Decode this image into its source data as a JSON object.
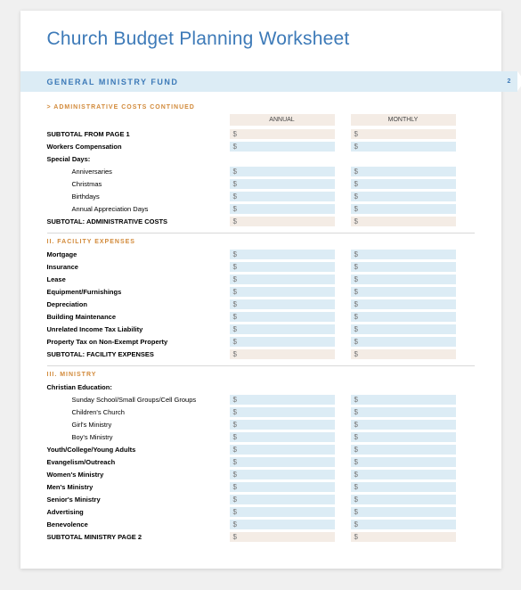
{
  "colors": {
    "title": "#3d7ab8",
    "band_bg": "#dcecf5",
    "band_text": "#3d7ab8",
    "orange": "#d28a3a",
    "fill_blue": "#dcecf5",
    "fill_tan": "#f4ece5",
    "page_bg": "#ffffff",
    "body_bg": "#f0f0f0"
  },
  "doc": {
    "title": "Church Budget Planning Worksheet",
    "fund_title": "GENERAL MINISTRY FUND",
    "page_number": "2",
    "col_annual": "ANNUAL",
    "col_monthly": "MONTHLY",
    "dollar": "$"
  },
  "section1": {
    "header": "> ADMINISTRATIVE COSTS CONTINUED",
    "rows": [
      {
        "label": "SUBTOTAL FROM PAGE 1",
        "bold": true,
        "fill": "tan"
      },
      {
        "label": "Workers Compensation",
        "bold": true,
        "fill": "blue"
      },
      {
        "label": "Special Days:",
        "bold": true,
        "fill": "none"
      },
      {
        "label": "Anniversaries",
        "indent": 2,
        "fill": "blue"
      },
      {
        "label": "Christmas",
        "indent": 2,
        "fill": "blue"
      },
      {
        "label": "Birthdays",
        "indent": 2,
        "fill": "blue"
      },
      {
        "label": "Annual Appreciation Days",
        "indent": 2,
        "fill": "blue"
      },
      {
        "label": "SUBTOTAL: ADMINISTRATIVE COSTS",
        "bold": true,
        "fill": "tan"
      }
    ]
  },
  "section2": {
    "header": "II. FACILITY EXPENSES",
    "rows": [
      {
        "label": "Mortgage",
        "bold": true,
        "fill": "blue"
      },
      {
        "label": "Insurance",
        "bold": true,
        "fill": "blue"
      },
      {
        "label": "Lease",
        "bold": true,
        "fill": "blue"
      },
      {
        "label": "Equipment/Furnishings",
        "bold": true,
        "fill": "blue"
      },
      {
        "label": "Depreciation",
        "bold": true,
        "fill": "blue"
      },
      {
        "label": "Building Maintenance",
        "bold": true,
        "fill": "blue"
      },
      {
        "label": "Unrelated Income Tax Liability",
        "bold": true,
        "fill": "blue"
      },
      {
        "label": "Property Tax on Non-Exempt Property",
        "bold": true,
        "fill": "blue"
      },
      {
        "label": "SUBTOTAL: FACILITY EXPENSES",
        "bold": true,
        "fill": "tan"
      }
    ]
  },
  "section3": {
    "header": "III. MINISTRY",
    "rows": [
      {
        "label": "Christian Education:",
        "bold": true,
        "fill": "none"
      },
      {
        "label": "Sunday School/Small Groups/Cell Groups",
        "indent": 2,
        "fill": "blue"
      },
      {
        "label": "Children's Church",
        "indent": 2,
        "fill": "blue"
      },
      {
        "label": "Girl's Ministry",
        "indent": 2,
        "fill": "blue"
      },
      {
        "label": "Boy's Ministry",
        "indent": 2,
        "fill": "blue"
      },
      {
        "label": "Youth/College/Young Adults",
        "bold": true,
        "fill": "blue"
      },
      {
        "label": "Evangelism/Outreach",
        "bold": true,
        "fill": "blue"
      },
      {
        "label": "Women's Ministry",
        "bold": true,
        "fill": "blue"
      },
      {
        "label": "Men's Ministry",
        "bold": true,
        "fill": "blue"
      },
      {
        "label": "Senior's Ministry",
        "bold": true,
        "fill": "blue"
      },
      {
        "label": "Advertising",
        "bold": true,
        "fill": "blue"
      },
      {
        "label": "Benevolence",
        "bold": true,
        "fill": "blue"
      },
      {
        "label": "SUBTOTAL MINISTRY PAGE 2",
        "bold": true,
        "fill": "tan"
      }
    ]
  }
}
